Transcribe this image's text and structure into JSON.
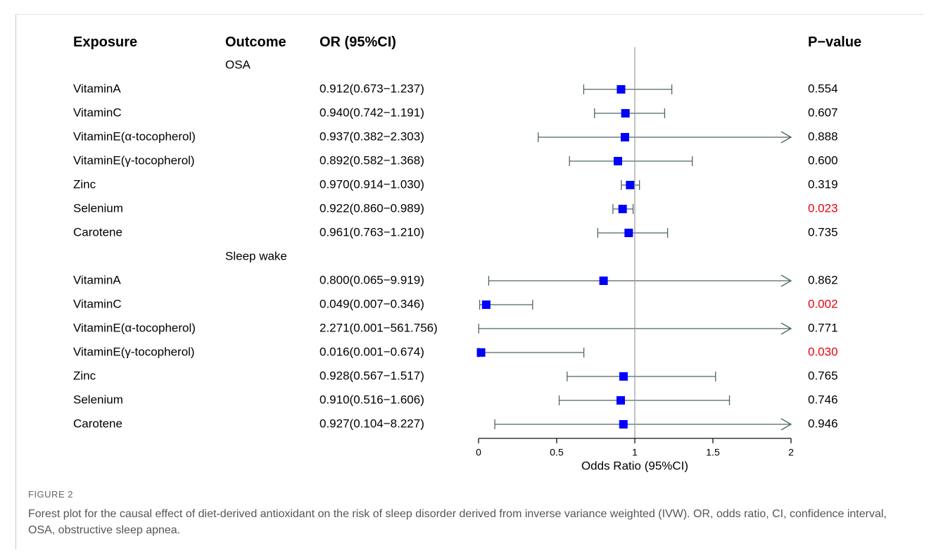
{
  "headers": {
    "exposure": "Exposure",
    "outcome": "Outcome",
    "or": "OR (95%CI)",
    "pvalue": "P−value"
  },
  "chart_data": {
    "type": "forest",
    "xlabel": "Odds Ratio (95%CI)",
    "xlim": [
      0,
      2
    ],
    "ticks": [
      0,
      0.5,
      1,
      1.5,
      2
    ],
    "tick_labels": [
      "0",
      "0.5",
      "1",
      "1.5",
      "2"
    ],
    "reference_line": 1,
    "highlight_color": "#e8000b",
    "point_color": "#0000ff",
    "ci_color": "#4f6468",
    "groups": [
      {
        "outcome": "OSA",
        "rows": [
          {
            "exposure": "VitaminA",
            "or_text": "0.912(0.673−1.237)",
            "or": 0.912,
            "lo": 0.673,
            "hi": 1.237,
            "p": "0.554",
            "significant": false
          },
          {
            "exposure": "VitaminC",
            "or_text": "0.940(0.742−1.191)",
            "or": 0.94,
            "lo": 0.742,
            "hi": 1.191,
            "p": "0.607",
            "significant": false
          },
          {
            "exposure": "VitaminE(α-tocopherol)",
            "or_text": "0.937(0.382−2.303)",
            "or": 0.937,
            "lo": 0.382,
            "hi": 2.303,
            "p": "0.888",
            "significant": false
          },
          {
            "exposure": "VitaminE(γ-tocopherol)",
            "or_text": "0.892(0.582−1.368)",
            "or": 0.892,
            "lo": 0.582,
            "hi": 1.368,
            "p": "0.600",
            "significant": false
          },
          {
            "exposure": "Zinc",
            "or_text": "0.970(0.914−1.030)",
            "or": 0.97,
            "lo": 0.914,
            "hi": 1.03,
            "p": "0.319",
            "significant": false
          },
          {
            "exposure": "Selenium",
            "or_text": "0.922(0.860−0.989)",
            "or": 0.922,
            "lo": 0.86,
            "hi": 0.989,
            "p": "0.023",
            "significant": true
          },
          {
            "exposure": "Carotene",
            "or_text": "0.961(0.763−1.210)",
            "or": 0.961,
            "lo": 0.763,
            "hi": 1.21,
            "p": "0.735",
            "significant": false
          }
        ]
      },
      {
        "outcome": "Sleep wake",
        "rows": [
          {
            "exposure": "VitaminA",
            "or_text": "0.800(0.065−9.919)",
            "or": 0.8,
            "lo": 0.065,
            "hi": 9.919,
            "p": "0.862",
            "significant": false
          },
          {
            "exposure": "VitaminC",
            "or_text": "0.049(0.007−0.346)",
            "or": 0.049,
            "lo": 0.007,
            "hi": 0.346,
            "p": "0.002",
            "significant": true
          },
          {
            "exposure": "VitaminE(α-tocopherol)",
            "or_text": "2.271(0.001−561.756)",
            "or": 2.271,
            "lo": 0.001,
            "hi": 561.756,
            "p": "0.771",
            "significant": false
          },
          {
            "exposure": "VitaminE(γ-tocopherol)",
            "or_text": "0.016(0.001−0.674)",
            "or": 0.016,
            "lo": 0.001,
            "hi": 0.674,
            "p": "0.030",
            "significant": true
          },
          {
            "exposure": "Zinc",
            "or_text": "0.928(0.567−1.517)",
            "or": 0.928,
            "lo": 0.567,
            "hi": 1.517,
            "p": "0.765",
            "significant": false
          },
          {
            "exposure": "Selenium",
            "or_text": "0.910(0.516−1.606)",
            "or": 0.91,
            "lo": 0.516,
            "hi": 1.606,
            "p": "0.746",
            "significant": false
          },
          {
            "exposure": "Carotene",
            "or_text": "0.927(0.104−8.227)",
            "or": 0.927,
            "lo": 0.104,
            "hi": 8.227,
            "p": "0.946",
            "significant": false
          }
        ]
      }
    ]
  },
  "caption": {
    "label": "FIGURE 2",
    "text": "Forest plot for the causal effect of diet-derived antioxidant on the risk of sleep disorder derived from inverse variance weighted (IVW). OR, odds ratio, CI, confidence interval, OSA, obstructive sleep apnea."
  }
}
